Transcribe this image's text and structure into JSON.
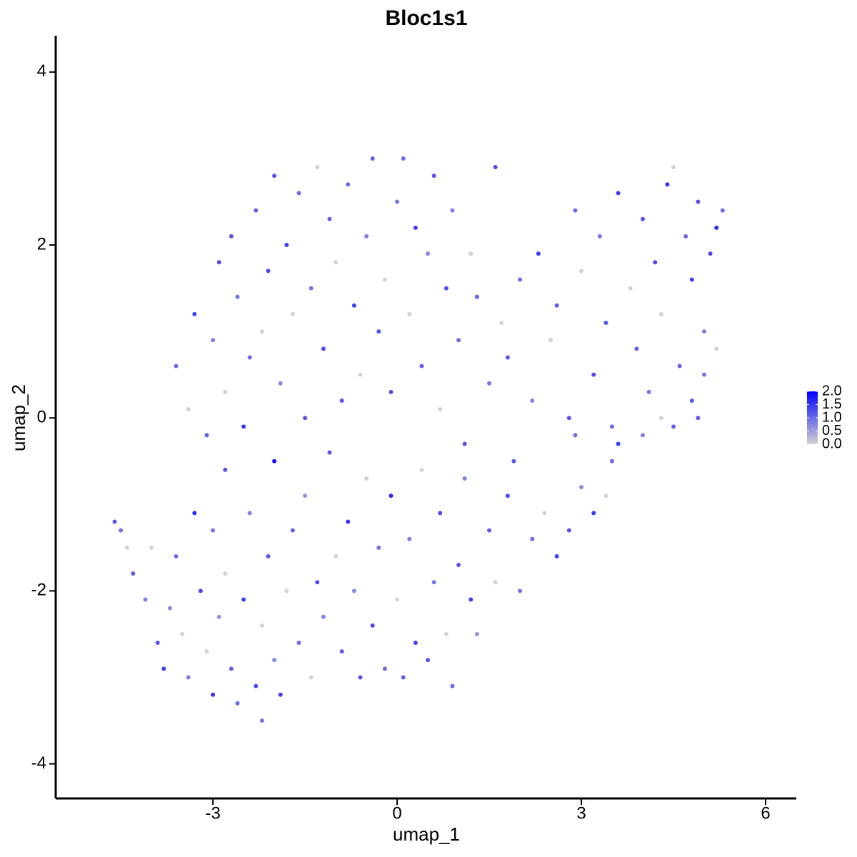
{
  "chart_data": {
    "type": "scatter",
    "title": "Bloc1s1",
    "x_label": "umap_1",
    "y_label": "umap_2",
    "xlim": [
      -5.56,
      6.5
    ],
    "ylim": [
      -4.4,
      4.42
    ],
    "xticks": [
      -3,
      0,
      3,
      6
    ],
    "yticks": [
      -4,
      -2,
      0,
      2,
      4
    ],
    "color_low": "#d3d3d3",
    "color_high": "#0000ff",
    "color_lim": [
      0,
      2
    ],
    "color_ticks": [
      {
        "value": 0,
        "label": "0.0"
      },
      {
        "value": 0.5,
        "label": "0.5"
      },
      {
        "value": 1,
        "label": "1.0"
      },
      {
        "value": 1.5,
        "label": "1.5"
      },
      {
        "value": 2,
        "label": "2.0"
      }
    ],
    "x": [
      -4.6,
      -4.5,
      -4.4,
      -4.3,
      -4.1,
      -4.0,
      -3.9,
      -3.8,
      -3.7,
      -3.6,
      -3.5,
      -3.4,
      -3.3,
      -3.2,
      -3.1,
      -3.0,
      -3.0,
      -2.9,
      -2.8,
      -2.8,
      -2.7,
      -2.6,
      -2.5,
      -2.4,
      -2.3,
      -2.2,
      -2.2,
      -2.1,
      -2.0,
      -2.0,
      -1.9,
      -1.8,
      -1.7,
      -1.6,
      -1.5,
      -1.4,
      -1.3,
      -1.2,
      -1.1,
      -1.0,
      -0.9,
      -0.8,
      -0.7,
      -0.6,
      -0.5,
      -0.4,
      -0.3,
      -0.2,
      -0.1,
      0.0,
      0.1,
      0.2,
      0.3,
      0.4,
      0.5,
      0.6,
      0.7,
      0.8,
      0.9,
      1.0,
      1.1,
      1.2,
      1.3,
      1.5,
      1.6,
      1.8,
      2.0,
      2.2,
      2.4,
      2.6,
      2.8,
      3.0,
      3.2,
      3.4,
      3.5,
      3.6,
      4.0,
      4.3,
      4.5,
      4.8,
      5.0,
      -3.6,
      -3.4,
      -3.3,
      -3.1,
      -3.0,
      -2.9,
      -2.8,
      -2.7,
      -2.6,
      -2.5,
      -2.4,
      -2.3,
      -2.2,
      -2.1,
      -2.0,
      -1.9,
      -1.8,
      -1.7,
      -1.6,
      -1.5,
      -1.4,
      -1.3,
      -1.2,
      -1.1,
      -1.0,
      -0.9,
      -0.8,
      -0.7,
      -0.6,
      -0.5,
      -0.4,
      -0.3,
      -0.2,
      -0.1,
      0.0,
      0.1,
      0.2,
      0.3,
      0.4,
      0.5,
      0.6,
      0.7,
      0.8,
      0.9,
      1.0,
      1.1,
      1.2,
      1.3,
      1.5,
      1.6,
      1.7,
      1.8,
      2.0,
      2.2,
      2.3,
      2.5,
      2.6,
      2.8,
      2.9,
      3.0,
      3.2,
      3.3,
      3.4,
      3.5,
      3.6,
      3.8,
      3.9,
      4.0,
      4.1,
      4.2,
      4.3,
      4.4,
      4.5,
      4.6,
      4.7,
      4.8,
      4.9,
      5.0,
      5.1,
      5.2,
      5.3,
      5.2,
      4.9,
      2.9,
      1.9
    ],
    "y": [
      -1.2,
      -1.3,
      -1.5,
      -1.8,
      -2.1,
      -1.5,
      -2.6,
      -2.9,
      -2.2,
      -1.6,
      -2.5,
      -3.0,
      -1.1,
      -2.0,
      -2.7,
      -3.2,
      -1.3,
      -2.3,
      -0.6,
      -1.8,
      -2.9,
      -3.3,
      -2.1,
      -1.1,
      -3.1,
      -3.5,
      -2.4,
      -1.6,
      -0.5,
      -2.8,
      -3.2,
      -2.0,
      -1.3,
      -2.6,
      -0.9,
      -3.0,
      -1.9,
      -2.3,
      -0.4,
      -1.6,
      -2.7,
      -1.2,
      -2.0,
      -3.0,
      -0.7,
      -2.4,
      -1.5,
      -2.9,
      -0.9,
      -2.1,
      -3.0,
      -1.4,
      -2.6,
      -0.6,
      -2.8,
      -1.9,
      -1.1,
      -2.5,
      -3.1,
      -1.7,
      -0.7,
      -2.1,
      -2.5,
      -1.3,
      -1.9,
      -0.9,
      -2.0,
      -1.4,
      -1.1,
      -1.6,
      -1.3,
      -0.8,
      -1.1,
      -0.9,
      -0.5,
      -0.3,
      -0.2,
      0.0,
      -0.1,
      0.2,
      0.5,
      0.6,
      0.1,
      1.2,
      -0.2,
      0.9,
      1.8,
      0.3,
      2.1,
      1.4,
      -0.1,
      0.7,
      2.4,
      1.0,
      1.7,
      2.8,
      0.4,
      2.0,
      1.2,
      2.6,
      0.0,
      1.5,
      2.9,
      0.8,
      2.3,
      1.8,
      0.2,
      2.7,
      1.3,
      0.5,
      2.1,
      3.0,
      1.0,
      1.6,
      0.3,
      2.5,
      3.0,
      1.2,
      2.2,
      0.6,
      1.9,
      2.8,
      0.1,
      1.5,
      2.4,
      0.9,
      -0.3,
      1.9,
      1.4,
      0.4,
      2.9,
      1.1,
      0.7,
      1.6,
      0.2,
      1.9,
      0.9,
      1.3,
      0.0,
      2.4,
      1.7,
      0.5,
      2.1,
      1.1,
      -0.1,
      2.6,
      1.5,
      0.8,
      2.3,
      0.3,
      1.8,
      1.2,
      2.7,
      2.9,
      0.6,
      2.1,
      1.6,
      2.5,
      1.0,
      1.9,
      2.2,
      2.4,
      0.8,
      0.0,
      -0.2,
      -0.5
    ],
    "values": [
      1.2,
      0.9,
      0,
      1.1,
      0.8,
      0,
      1.2,
      1.4,
      0.7,
      1.0,
      0,
      0.8,
      1.6,
      1.3,
      0,
      1.5,
      0.9,
      0.6,
      1.2,
      0,
      1.1,
      1.0,
      1.4,
      0.8,
      1.3,
      0.9,
      0,
      1.2,
      1.9,
      0.7,
      1.4,
      0,
      1.1,
      1.0,
      0.6,
      0,
      1.3,
      0.8,
      1.2,
      0,
      1.1,
      1.5,
      0.7,
      1.2,
      0,
      1.3,
      0.9,
      1.0,
      1.6,
      0,
      1.1,
      0.8,
      1.4,
      0,
      1.2,
      0.9,
      1.3,
      0,
      1.0,
      1.2,
      0.8,
      1.4,
      0.6,
      1.1,
      0,
      1.3,
      0.9,
      1.0,
      0,
      1.4,
      1.2,
      0.7,
      1.5,
      0,
      1.0,
      1.4,
      0.8,
      0,
      1.1,
      1.2,
      0.9,
      1.0,
      0,
      1.4,
      1.1,
      0.8,
      1.3,
      0,
      1.2,
      0.9,
      1.5,
      1.0,
      1.1,
      0,
      1.3,
      1.2,
      0.7,
      1.4,
      0,
      1.0,
      1.2,
      0.9,
      0,
      1.3,
      1.1,
      0,
      1.2,
      1.0,
      1.4,
      0,
      0.8,
      1.1,
      1.2,
      0,
      1.3,
      0.9,
      1.0,
      0,
      1.4,
      1.1,
      0.7,
      1.2,
      0,
      1.3,
      0.8,
      1.0,
      1.2,
      0,
      1.1,
      0.9,
      1.3,
      0,
      1.2,
      1.0,
      0.8,
      1.4,
      0,
      1.1,
      1.2,
      1.0,
      0,
      1.3,
      0.9,
      1.2,
      1.0,
      1.4,
      0,
      1.1,
      1.2,
      0.9,
      1.3,
      0,
      1.5,
      0,
      1.1,
      1.0,
      1.4,
      1.2,
      0.8,
      1.3,
      1.6,
      1.0,
      0,
      1.1,
      1.0,
      1.2
    ]
  }
}
